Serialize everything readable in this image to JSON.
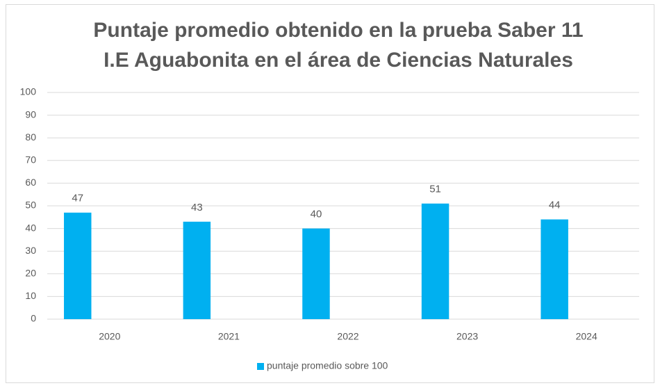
{
  "chart_data": {
    "type": "bar",
    "title": [
      "Puntaje promedio obtenido en la prueba Saber 11",
      "I.E Aguabonita en el área de Ciencias Naturales"
    ],
    "categories": [
      "2020",
      "2021",
      "2022",
      "2023",
      "2024"
    ],
    "series": [
      {
        "name": "puntaje promedio sobre 100",
        "color": "#00b0f0",
        "values": [
          47,
          43,
          40,
          51,
          44
        ]
      }
    ],
    "ylim": [
      0,
      100
    ],
    "yticks": [
      0,
      10,
      20,
      30,
      40,
      50,
      60,
      70,
      80,
      90,
      100
    ],
    "grid": true,
    "legend": "bottom"
  }
}
